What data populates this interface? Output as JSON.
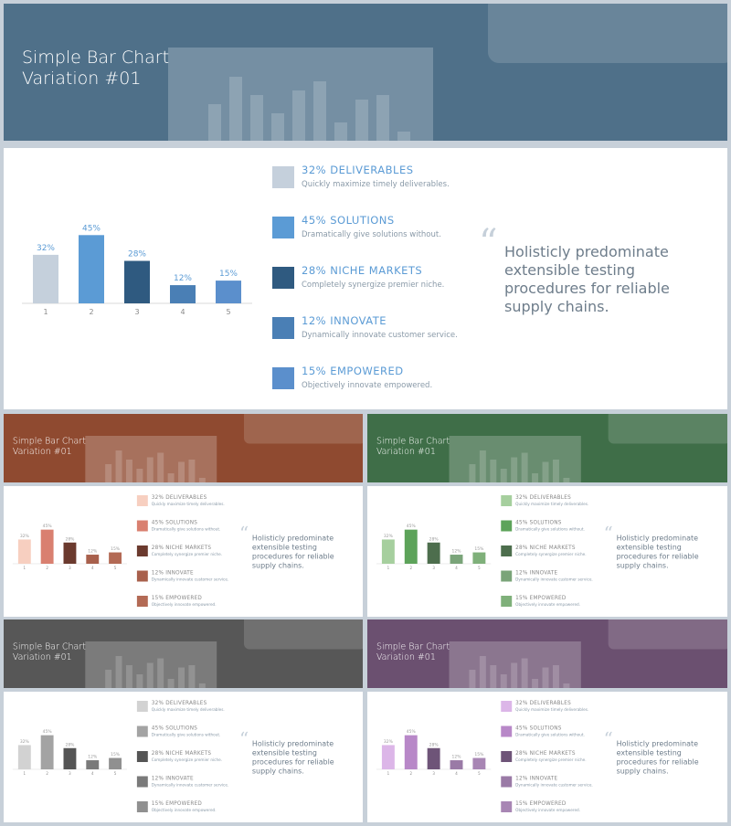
{
  "chart_data": [
    {
      "type": "bar",
      "title": "Simple Bar Chart Variation #01",
      "header_color": "#4f7089",
      "label_color": "#5b9bd5",
      "heading_color": "#5b9bd5",
      "categories": [
        "1",
        "2",
        "3",
        "4",
        "5"
      ],
      "values": [
        32,
        45,
        28,
        12,
        15
      ],
      "value_labels": [
        "32%",
        "45%",
        "28%",
        "12%",
        "15%"
      ],
      "colors": [
        "#c5d0dc",
        "#5b9bd5",
        "#2f5a80",
        "#4a7fb5",
        "#5b8fcc"
      ],
      "ylim": [
        0,
        50
      ],
      "legend": [
        {
          "heading": "32% DELIVERABLES",
          "text": "Quickly maximize timely deliverables."
        },
        {
          "heading": "45% SOLUTIONS",
          "text": "Dramatically give solutions without."
        },
        {
          "heading": "28% NICHE  MARKETS",
          "text": "Completely synergize premier niche."
        },
        {
          "heading": "12% INNOVATE",
          "text": "Dynamically innovate customer service."
        },
        {
          "heading": "15% EMPOWERED",
          "text": "Objectively innovate empowered."
        }
      ],
      "quote": "Holisticly predominate extensible testing procedures for reliable supply chains."
    },
    {
      "type": "bar",
      "title": "Simple Bar Chart Variation #01",
      "header_color": "#8f4a30",
      "label_color": "#999999",
      "heading_color": "#888888",
      "categories": [
        "1",
        "2",
        "3",
        "4",
        "5"
      ],
      "values": [
        32,
        45,
        28,
        12,
        15
      ],
      "value_labels": [
        "32%",
        "45%",
        "28%",
        "12%",
        "15%"
      ],
      "colors": [
        "#f7cfc0",
        "#d98070",
        "#6b3a2e",
        "#a8604c",
        "#b36a55"
      ],
      "ylim": [
        0,
        50
      ],
      "legend": [
        {
          "heading": "32% DELIVERABLES",
          "text": "Quickly maximize timely deliverables."
        },
        {
          "heading": "45% SOLUTIONS",
          "text": "Dramatically give solutions without."
        },
        {
          "heading": "28% NICHE  MARKETS",
          "text": "Completely synergize premier niche."
        },
        {
          "heading": "12% INNOVATE",
          "text": "Dynamically innovate customer service."
        },
        {
          "heading": "15% EMPOWERED",
          "text": "Objectively innovate empowered."
        }
      ],
      "quote": "Holisticly predominate extensible testing procedures for reliable supply chains."
    },
    {
      "type": "bar",
      "title": "Simple Bar Chart Variation #01",
      "header_color": "#3f6e48",
      "label_color": "#999999",
      "heading_color": "#888888",
      "categories": [
        "1",
        "2",
        "3",
        "4",
        "5"
      ],
      "values": [
        32,
        45,
        28,
        12,
        15
      ],
      "value_labels": [
        "32%",
        "45%",
        "28%",
        "12%",
        "15%"
      ],
      "colors": [
        "#a6cf9e",
        "#5da35a",
        "#4d6e4d",
        "#7aa479",
        "#7fb07a"
      ],
      "ylim": [
        0,
        50
      ],
      "legend": [
        {
          "heading": "32% DELIVERABLES",
          "text": "Quickly maximize timely deliverables."
        },
        {
          "heading": "45% SOLUTIONS",
          "text": "Dramatically give solutions without."
        },
        {
          "heading": "28% NICHE  MARKETS",
          "text": "Completely synergize premier niche."
        },
        {
          "heading": "12% INNOVATE",
          "text": "Dynamically innovate customer service."
        },
        {
          "heading": "15% EMPOWERED",
          "text": "Objectively innovate empowered."
        }
      ],
      "quote": "Holisticly predominate extensible testing procedures for reliable supply chains."
    },
    {
      "type": "bar",
      "title": "Simple Bar Chart Variation #01",
      "header_color": "#575757",
      "label_color": "#999999",
      "heading_color": "#888888",
      "categories": [
        "1",
        "2",
        "3",
        "4",
        "5"
      ],
      "values": [
        32,
        45,
        28,
        12,
        15
      ],
      "value_labels": [
        "32%",
        "45%",
        "28%",
        "12%",
        "15%"
      ],
      "colors": [
        "#d2d2d2",
        "#a3a3a3",
        "#555555",
        "#7a7a7a",
        "#909090"
      ],
      "ylim": [
        0,
        50
      ],
      "legend": [
        {
          "heading": "32% DELIVERABLES",
          "text": "Quickly maximize timely deliverables."
        },
        {
          "heading": "45% SOLUTIONS",
          "text": "Dramatically give solutions without."
        },
        {
          "heading": "28% NICHE  MARKETS",
          "text": "Completely synergize premier niche."
        },
        {
          "heading": "12% INNOVATE",
          "text": "Dynamically innovate customer service."
        },
        {
          "heading": "15% EMPOWERED",
          "text": "Objectively innovate empowered."
        }
      ],
      "quote": "Holisticly predominate extensible testing procedures for reliable supply chains."
    },
    {
      "type": "bar",
      "title": "Simple Bar Chart Variation #01",
      "header_color": "#6b5070",
      "label_color": "#999999",
      "heading_color": "#888888",
      "categories": [
        "1",
        "2",
        "3",
        "4",
        "5"
      ],
      "values": [
        32,
        45,
        28,
        12,
        15
      ],
      "value_labels": [
        "32%",
        "45%",
        "28%",
        "12%",
        "15%"
      ],
      "colors": [
        "#dcb6e8",
        "#b888c8",
        "#6e5478",
        "#9a7aa6",
        "#a886b4"
      ],
      "ylim": [
        0,
        50
      ],
      "legend": [
        {
          "heading": "32% DELIVERABLES",
          "text": "Quickly maximize timely deliverables."
        },
        {
          "heading": "45% SOLUTIONS",
          "text": "Dramatically give solutions without."
        },
        {
          "heading": "28% NICHE  MARKETS",
          "text": "Completely synergize premier niche."
        },
        {
          "heading": "12% INNOVATE",
          "text": "Dynamically innovate customer service."
        },
        {
          "heading": "15% EMPOWERED",
          "text": "Objectively innovate empowered."
        }
      ],
      "quote": "Holisticly predominate extensible testing procedures for reliable supply chains."
    }
  ]
}
